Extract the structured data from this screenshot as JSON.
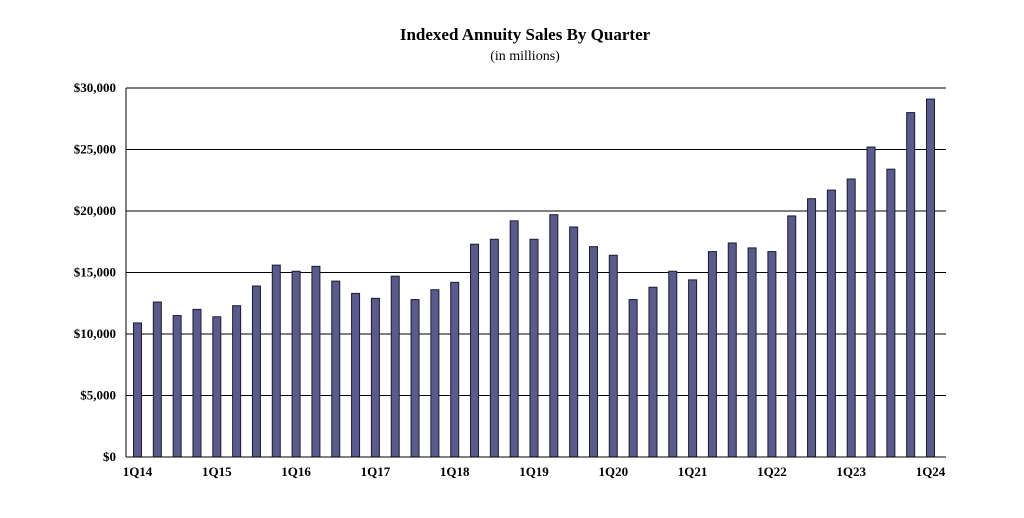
{
  "chart_data": {
    "type": "bar",
    "title": "Indexed Annuity Sales By Quarter",
    "subtitle": "(in millions)",
    "xlabel": "",
    "ylabel": "",
    "ylim": [
      0,
      30000
    ],
    "y_ticks": [
      "$0",
      "$5,000",
      "$10,000",
      "$15,000",
      "$20,000",
      "$25,000",
      "$30,000"
    ],
    "x_tick_labels": [
      "1Q14",
      "1Q15",
      "1Q16",
      "1Q17",
      "1Q18",
      "1Q19",
      "1Q20",
      "1Q21",
      "1Q22",
      "1Q23",
      "1Q24"
    ],
    "grid": true,
    "bar_color": "#5a5a8c",
    "categories": [
      "1Q14",
      "2Q14",
      "3Q14",
      "4Q14",
      "1Q15",
      "2Q15",
      "3Q15",
      "4Q15",
      "1Q16",
      "2Q16",
      "3Q16",
      "4Q16",
      "1Q17",
      "2Q17",
      "3Q17",
      "4Q17",
      "1Q18",
      "2Q18",
      "3Q18",
      "4Q18",
      "1Q19",
      "2Q19",
      "3Q19",
      "4Q19",
      "1Q20",
      "2Q20",
      "3Q20",
      "4Q20",
      "1Q21",
      "2Q21",
      "3Q21",
      "4Q21",
      "1Q22",
      "2Q22",
      "3Q22",
      "4Q22",
      "1Q23",
      "2Q23",
      "3Q23",
      "4Q23",
      "1Q24"
    ],
    "values": [
      10900,
      12600,
      11500,
      12000,
      11400,
      12300,
      13900,
      15600,
      15100,
      15500,
      14300,
      13300,
      12900,
      14700,
      12800,
      13600,
      14200,
      17300,
      17700,
      19200,
      17700,
      19700,
      18700,
      17100,
      16400,
      12800,
      13800,
      15100,
      14400,
      16700,
      17400,
      17000,
      16700,
      19600,
      21000,
      21700,
      22600,
      25200,
      23400,
      28000,
      29100
    ]
  }
}
